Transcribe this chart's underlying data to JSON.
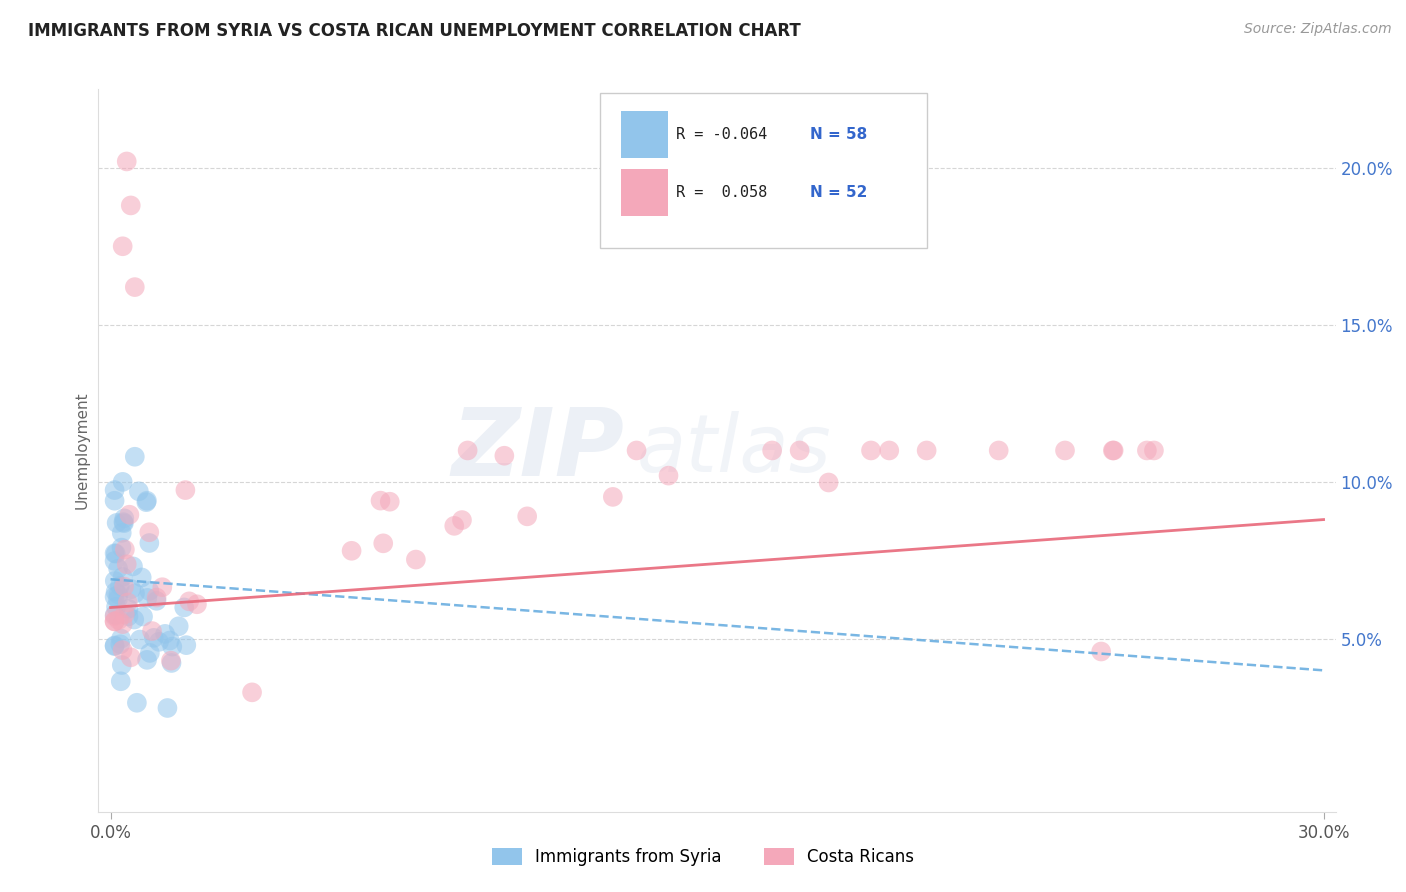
{
  "title": "IMMIGRANTS FROM SYRIA VS COSTA RICAN UNEMPLOYMENT CORRELATION CHART",
  "source_text": "Source: ZipAtlas.com",
  "ylabel": "Unemployment",
  "xlim": [
    0.0,
    0.3
  ],
  "ylim": [
    0.0,
    0.22
  ],
  "x_tick_labels": [
    "0.0%",
    "30.0%"
  ],
  "y_tick_labels_right": [
    "5.0%",
    "10.0%",
    "15.0%",
    "20.0%"
  ],
  "y_ticks_right": [
    0.05,
    0.1,
    0.15,
    0.2
  ],
  "legend_label1": "Immigrants from Syria",
  "legend_label2": "Costa Ricans",
  "blue_color": "#92c5eb",
  "pink_color": "#f4a8ba",
  "blue_line_color": "#6aaee0",
  "pink_line_color": "#e8687a",
  "watermark_zip": "ZIP",
  "watermark_atlas": "atlas",
  "legend_r1": "R = -0.064",
  "legend_n1": "N = 58",
  "legend_r2": "R =  0.058",
  "legend_n2": "N = 52"
}
